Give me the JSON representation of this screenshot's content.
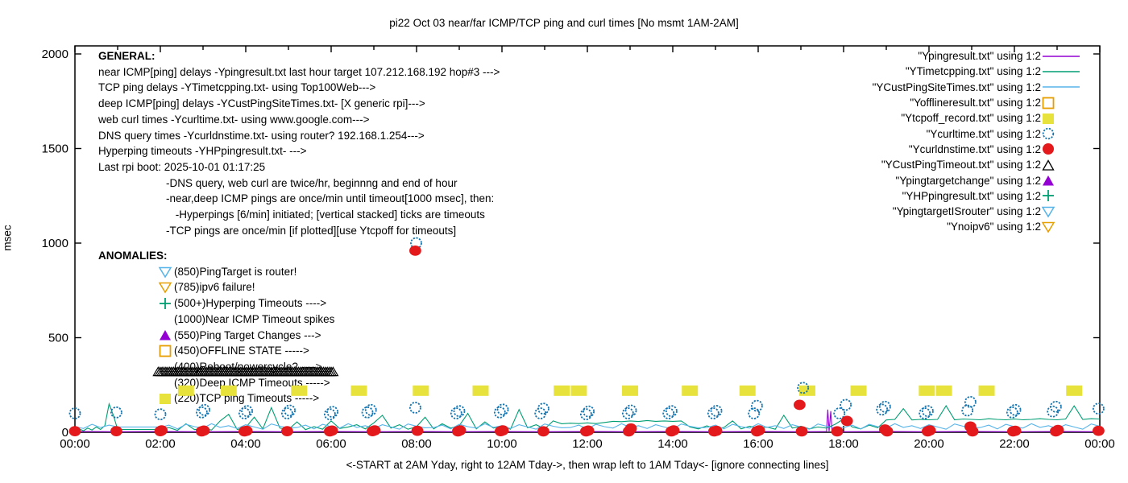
{
  "title": "pi22 Oct 03  near/far ICMP/TCP ping and curl times [No msmt 1AM-2AM]",
  "axes": {
    "ylabel": "msec",
    "xlabel": "<-START at 2AM Yday, right to 12AM Tday->, then wrap left to 1AM Tday<- [ignore connecting lines]",
    "y_ticks": [
      0,
      500,
      1000,
      1500,
      2000
    ],
    "ylim": [
      0,
      2040
    ],
    "x_hours": 24,
    "x_tick_labels": [
      "00:00",
      "02:00",
      "04:00",
      "06:00",
      "08:00",
      "10:00",
      "12:00",
      "14:00",
      "16:00",
      "18:00",
      "20:00",
      "22:00",
      "00:00"
    ]
  },
  "general": {
    "header": "GENERAL:",
    "lines": [
      "near ICMP[ping] delays -Ypingresult.txt last hour target 107.212.168.192 hop#3 --->",
      "TCP ping delays -YTimetcpping.txt- using Top100Web--->",
      "deep ICMP[ping] delays -YCustPingSiteTimes.txt- [X generic rpi]--->",
      "web curl times -Ycurltime.txt- using www.google.com--->",
      "DNS query times -Ycurldnstime.txt- using router? 192.168.1.254--->",
      "Hyperping timeouts -YHPpingresult.txt- --->",
      "Last rpi boot: 2025-10-01 01:17:25"
    ],
    "indented_lines": [
      "-DNS query, web curl are twice/hr, beginnng and end of hour",
      "-near,deep ICMP pings are once/min until timeout[1000 msec], then:",
      " -Hyperpings [6/min] initiated; [vertical stacked] ticks are timeouts",
      "-TCP pings are once/min [if plotted][use Ytcpoff for timeouts]"
    ]
  },
  "anomalies": {
    "header": "ANOMALIES:",
    "items": [
      {
        "marker": "open-triangle-down",
        "color": "#56b4e9",
        "label": "(850)PingTarget is router!"
      },
      {
        "marker": "open-triangle-down",
        "color": "#e69f00",
        "label": "(785)ipv6 failure!"
      },
      {
        "marker": "plus",
        "color": "#009e73",
        "label": "(500+)Hyperping Timeouts ---->"
      },
      {
        "marker": "none",
        "color": "",
        "label": "(1000)Near ICMP Timeout spikes"
      },
      {
        "marker": "filled-triangle-up",
        "color": "#9400d3",
        "label": "(550)Ping Target Changes --->"
      },
      {
        "marker": "open-square",
        "color": "#e69f00",
        "label": "(450)OFFLINE STATE ----->"
      },
      {
        "marker": "none",
        "color": "",
        "label": "(400)Reboot/powercycle? ---->"
      },
      {
        "marker": "none",
        "color": "",
        "label": "(320)Deep ICMP Timeouts ----->"
      },
      {
        "marker": "filled-square",
        "color": "#e8e33c",
        "label": "(220)TCP ping Timeouts ----->"
      }
    ]
  },
  "legend": {
    "items": [
      {
        "label": "\"Ypingresult.txt\" using 1:2",
        "marker": "line",
        "color": "#9400d3"
      },
      {
        "label": "\"YTimetcpping.txt\" using 1:2",
        "marker": "line",
        "color": "#009e73"
      },
      {
        "label": "\"YCustPingSiteTimes.txt\" using 1:2",
        "marker": "line",
        "color": "#56b4e9"
      },
      {
        "label": "\"Yofflineresult.txt\" using 1:2",
        "marker": "open-square",
        "color": "#e69f00"
      },
      {
        "label": "\"Ytcpoff_record.txt\" using 1:2",
        "marker": "filled-square",
        "color": "#e8e33c"
      },
      {
        "label": "\"Ycurltime.txt\" using 1:2",
        "marker": "open-circle",
        "color": "#1374b0"
      },
      {
        "label": "\"Ycurldnstime.txt\" using 1:2",
        "marker": "filled-circle",
        "color": "#e3191c"
      },
      {
        "label": "\"YCustPingTimeout.txt\" using 1:2",
        "marker": "open-triangle-up",
        "color": "#000000"
      },
      {
        "label": "\"Ypingtargetchange\" using 1:2",
        "marker": "filled-triangle-up",
        "color": "#9400d3"
      },
      {
        "label": "\"YHPpingresult.txt\" using 1:2",
        "marker": "plus",
        "color": "#009e73"
      },
      {
        "label": "\"YpingtargetISrouter\" using 1:2",
        "marker": "open-triangle-down",
        "color": "#56b4e9"
      },
      {
        "label": "\"Ynoipv6\" using 1:2",
        "marker": "open-triangle-down",
        "color": "#e69f00"
      }
    ]
  },
  "chart_data": {
    "type": "line",
    "x_units": "hours 0-24 (time of day)",
    "y_units": "msec",
    "series": [
      {
        "name": "Ypingresult.txt",
        "role": "near ICMP ping delays",
        "type": "line",
        "color": "#9400d3",
        "points": [
          [
            0,
            4
          ],
          [
            1,
            3
          ],
          [
            2,
            4
          ],
          [
            3,
            3
          ],
          [
            4,
            4
          ],
          [
            5,
            3
          ],
          [
            6,
            4
          ],
          [
            7,
            3
          ],
          [
            8,
            4
          ],
          [
            9,
            3
          ],
          [
            10,
            4
          ],
          [
            11,
            3
          ],
          [
            12,
            4
          ],
          [
            13,
            3
          ],
          [
            14,
            4
          ],
          [
            15,
            3
          ],
          [
            16,
            4
          ],
          [
            17,
            3
          ],
          [
            17.6,
            4
          ],
          [
            17.63,
            120
          ],
          [
            17.66,
            5
          ],
          [
            17.7,
            112
          ],
          [
            17.73,
            4
          ],
          [
            18,
            3
          ],
          [
            19,
            4
          ],
          [
            20,
            3
          ],
          [
            21,
            4
          ],
          [
            22,
            3
          ],
          [
            23,
            4
          ],
          [
            24,
            3
          ]
        ]
      },
      {
        "name": "YTimetcpping.txt",
        "role": "TCP ping delays",
        "type": "line",
        "color": "#009e73",
        "segments": [
          {
            "x_start": 0,
            "x_step": 0.1,
            "values": [
              12,
              18,
              8,
              22,
              12,
              28,
              15,
              35,
              150,
              90,
              15
            ]
          },
          {
            "x_start": 1,
            "x_step": 1,
            "values": [
              15,
              15
            ]
          },
          {
            "x_start": 2,
            "x_step": 0.2,
            "values": [
              15,
              25,
              10,
              45,
              14,
              20,
              12,
              60,
              95,
              15,
              25,
              80,
              18,
              130,
              22,
              15,
              55,
              14,
              30,
              16,
              60,
              20,
              28,
              40,
              18,
              50,
              90,
              22,
              40,
              16,
              30,
              80,
              18,
              45,
              22,
              35,
              100,
              18,
              55,
              22,
              35,
              16,
              120,
              24,
              40,
              18,
              60,
              45,
              48,
              46,
              50,
              46,
              52,
              58,
              56,
              60,
              57,
              62,
              58,
              60,
              58,
              60,
              28,
              18,
              34,
              16,
              26,
              60,
              18,
              32,
              20,
              28,
              16,
              90,
              22,
              32,
              18,
              28,
              22,
              42,
              70,
              28,
              18,
              38,
              24,
              65,
              68,
              125,
              65,
              68,
              66,
              68,
              140,
              66,
              70,
              68,
              66,
              72,
              68,
              66,
              70,
              66,
              68,
              72,
              68,
              66,
              70,
              140,
              68,
              72,
              70
            ]
          }
        ]
      },
      {
        "name": "YCustPingSiteTimes.txt",
        "role": "deep ICMP ping delays",
        "type": "line",
        "color": "#56b4e9",
        "segments": [
          {
            "x_start": 0,
            "x_step": 0.2,
            "values": [
              30,
              20,
              42,
              25,
              38,
              28
            ]
          },
          {
            "x_start": 1,
            "x_step": 1,
            "values": [
              28,
              28
            ]
          },
          {
            "x_start": 2,
            "x_step": 0.2,
            "values": [
              25,
              38,
              18,
              42,
              30,
              22,
              45,
              26,
              35,
              20,
              40,
              28,
              16,
              44,
              32,
              24,
              25,
              38,
              18,
              42,
              30,
              22,
              45,
              26,
              35,
              20,
              40,
              28,
              16,
              44,
              32,
              24,
              25,
              38,
              18,
              42,
              30,
              22,
              45,
              26,
              35,
              20,
              40,
              28,
              16,
              44,
              32,
              24,
              25,
              38,
              18,
              42,
              30,
              22,
              45,
              26,
              35,
              20,
              40,
              28,
              16,
              44,
              32,
              24,
              25,
              38,
              18,
              42,
              30,
              22,
              45,
              26,
              35,
              20,
              40,
              28,
              16,
              44,
              32,
              24,
              25,
              38,
              18,
              42,
              30,
              22,
              45,
              26,
              35,
              20,
              40,
              28,
              16,
              44,
              32,
              24,
              25,
              38,
              18,
              42,
              30,
              22,
              45,
              26,
              35,
              20,
              40,
              28,
              16,
              44,
              32
            ]
          }
        ]
      },
      {
        "name": "Ytcpoff_record.txt",
        "role": "TCP ping timeouts (plotted at 220)",
        "type": "points",
        "marker": "filled-square",
        "color": "#e8e33c",
        "marker_w": 20,
        "marker_h": 13,
        "points": [
          [
            2.6,
            220
          ],
          [
            3.6,
            220
          ],
          [
            5.25,
            220
          ],
          [
            6.65,
            220
          ],
          [
            8.1,
            220
          ],
          [
            9.5,
            220
          ],
          [
            11.4,
            220
          ],
          [
            11.8,
            220
          ],
          [
            13.0,
            220
          ],
          [
            14.4,
            220
          ],
          [
            15.75,
            220
          ],
          [
            17.15,
            220
          ],
          [
            18.35,
            220
          ],
          [
            19.95,
            220
          ],
          [
            20.35,
            220
          ],
          [
            21.35,
            220
          ],
          [
            23.4,
            220
          ]
        ]
      },
      {
        "name": "YCustPingTimeout.txt",
        "role": "deep ICMP timeouts band (once/min 02:00-06:05 at 320)",
        "type": "marker-band",
        "marker": "open-triangle-up",
        "color": "#000000",
        "y": 320,
        "x_start": 1.95,
        "x_end": 6.08,
        "x_step": 0.045
      },
      {
        "name": "Ycurltime.txt",
        "role": "web curl times",
        "type": "points",
        "marker": "open-circle",
        "color": "#1374b0",
        "points": [
          [
            0,
            100
          ],
          [
            0.97,
            105
          ],
          [
            2,
            95
          ],
          [
            2.97,
            105
          ],
          [
            3.03,
            118
          ],
          [
            3.97,
            100
          ],
          [
            4.03,
            112
          ],
          [
            4.97,
            100
          ],
          [
            5.03,
            115
          ],
          [
            5.97,
            95
          ],
          [
            6.03,
            108
          ],
          [
            6.85,
            105
          ],
          [
            6.93,
            118
          ],
          [
            7.97,
            130
          ],
          [
            7.99,
            1000
          ],
          [
            8.93,
            100
          ],
          [
            9.0,
            112
          ],
          [
            9.95,
            105
          ],
          [
            10.02,
            120
          ],
          [
            10.9,
            100
          ],
          [
            10.97,
            125
          ],
          [
            11.97,
            95
          ],
          [
            12.03,
            110
          ],
          [
            12.95,
            100
          ],
          [
            13.02,
            115
          ],
          [
            13.9,
            100
          ],
          [
            13.97,
            112
          ],
          [
            14.95,
            100
          ],
          [
            15.02,
            113
          ],
          [
            15.9,
            100
          ],
          [
            15.97,
            140
          ],
          [
            17.05,
            235
          ],
          [
            17.9,
            100
          ],
          [
            18.05,
            145
          ],
          [
            18.9,
            120
          ],
          [
            18.97,
            135
          ],
          [
            19.9,
            100
          ],
          [
            19.97,
            112
          ],
          [
            20.9,
            115
          ],
          [
            20.97,
            160
          ],
          [
            21.95,
            105
          ],
          [
            22.02,
            118
          ],
          [
            22.9,
            110
          ],
          [
            22.97,
            135
          ],
          [
            23.97,
            125
          ]
        ]
      },
      {
        "name": "Ycurldnstime.txt",
        "role": "DNS query times",
        "type": "points",
        "marker": "filled-circle",
        "color": "#e3191c",
        "points": [
          [
            0,
            6
          ],
          [
            0.97,
            6
          ],
          [
            2,
            6
          ],
          [
            2.03,
            10
          ],
          [
            2.97,
            5
          ],
          [
            3.02,
            9
          ],
          [
            3.97,
            5
          ],
          [
            4.02,
            8
          ],
          [
            4.97,
            6
          ],
          [
            5.97,
            5
          ],
          [
            6.02,
            9
          ],
          [
            6.97,
            6
          ],
          [
            7.02,
            10
          ],
          [
            7.97,
            960
          ],
          [
            8.02,
            8
          ],
          [
            8.97,
            5
          ],
          [
            9.02,
            10
          ],
          [
            9.97,
            6
          ],
          [
            10.02,
            10
          ],
          [
            10.97,
            5
          ],
          [
            11.97,
            5
          ],
          [
            12.02,
            9
          ],
          [
            12.97,
            5
          ],
          [
            13.02,
            20
          ],
          [
            13.97,
            5
          ],
          [
            14.02,
            10
          ],
          [
            14.97,
            5
          ],
          [
            15.02,
            8
          ],
          [
            15.97,
            5
          ],
          [
            16.02,
            10
          ],
          [
            16.97,
            145
          ],
          [
            17.02,
            5
          ],
          [
            17.85,
            5
          ],
          [
            18.08,
            60
          ],
          [
            18.97,
            15
          ],
          [
            19.02,
            5
          ],
          [
            19.97,
            5
          ],
          [
            20.02,
            10
          ],
          [
            20.97,
            30
          ],
          [
            21.02,
            5
          ],
          [
            21.97,
            5
          ],
          [
            22.02,
            8
          ],
          [
            22.97,
            5
          ],
          [
            23.02,
            12
          ],
          [
            23.97,
            8
          ]
        ]
      }
    ]
  },
  "colors": {
    "frame": "#000000",
    "background": "#ffffff",
    "text": "#000000"
  }
}
